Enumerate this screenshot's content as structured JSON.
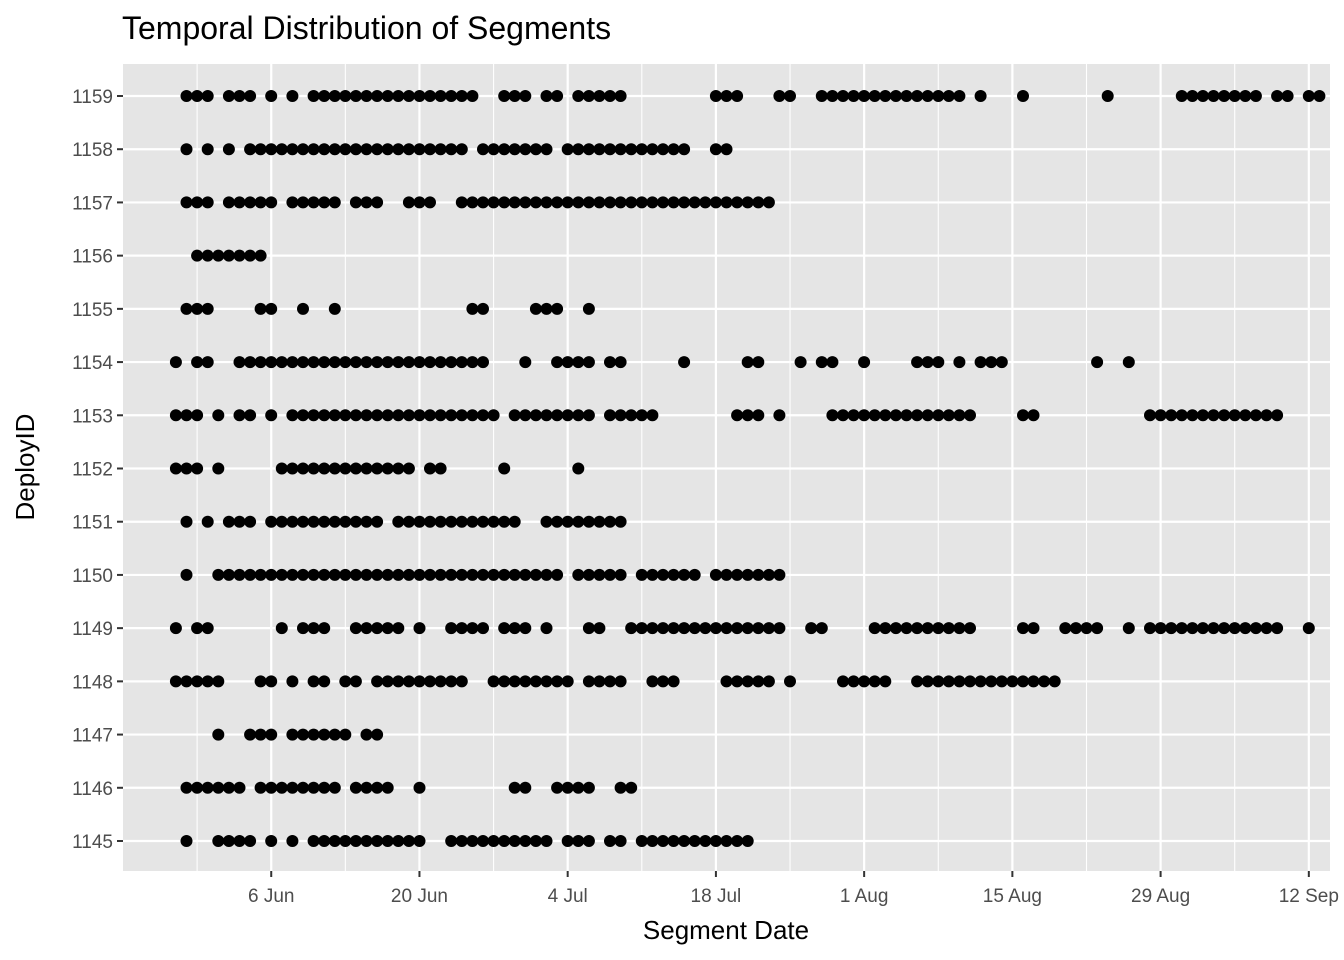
{
  "chart_data": {
    "type": "scatter",
    "title": "Temporal Distribution of Segments",
    "xlabel": "Segment Date",
    "ylabel": "DeployID",
    "x_ticks": [
      "6 Jun",
      "20 Jun",
      "4 Jul",
      "18 Jul",
      "1 Aug",
      "15 Aug",
      "29 Aug",
      "12 Sep"
    ],
    "x_tick_dates": [
      "2023-06-06",
      "2023-06-20",
      "2023-07-04",
      "2023-07-18",
      "2023-08-01",
      "2023-08-15",
      "2023-08-29",
      "2023-09-12"
    ],
    "xlim": [
      "2023-05-23",
      "2023-09-14"
    ],
    "y_categories": [
      "1145",
      "1146",
      "1147",
      "1148",
      "1149",
      "1150",
      "1151",
      "1152",
      "1153",
      "1154",
      "1155",
      "1156",
      "1157",
      "1158",
      "1159"
    ],
    "grid": true,
    "background": "#e5e5e5",
    "grid_color": "#ffffff",
    "point_color": "#000000",
    "series": [
      {
        "y": "1159",
        "x": [
          "2023-05-29",
          "2023-05-30",
          "2023-05-31",
          "2023-06-02",
          "2023-06-03",
          "2023-06-04",
          "2023-06-06",
          "2023-06-08",
          "2023-06-10",
          "2023-06-11",
          "2023-06-12",
          "2023-06-13",
          "2023-06-14",
          "2023-06-15",
          "2023-06-16",
          "2023-06-17",
          "2023-06-18",
          "2023-06-19",
          "2023-06-20",
          "2023-06-21",
          "2023-06-22",
          "2023-06-23",
          "2023-06-24",
          "2023-06-25",
          "2023-06-28",
          "2023-06-29",
          "2023-06-30",
          "2023-07-02",
          "2023-07-03",
          "2023-07-05",
          "2023-07-06",
          "2023-07-07",
          "2023-07-08",
          "2023-07-09",
          "2023-07-18",
          "2023-07-19",
          "2023-07-20",
          "2023-07-24",
          "2023-07-25",
          "2023-07-28",
          "2023-07-29",
          "2023-07-30",
          "2023-07-31",
          "2023-08-01",
          "2023-08-02",
          "2023-08-03",
          "2023-08-04",
          "2023-08-05",
          "2023-08-06",
          "2023-08-07",
          "2023-08-08",
          "2023-08-09",
          "2023-08-10",
          "2023-08-12",
          "2023-08-16",
          "2023-08-24",
          "2023-08-31",
          "2023-09-01",
          "2023-09-02",
          "2023-09-03",
          "2023-09-04",
          "2023-09-05",
          "2023-09-06",
          "2023-09-07",
          "2023-09-09",
          "2023-09-10",
          "2023-09-12",
          "2023-09-13"
        ]
      },
      {
        "y": "1158",
        "x": [
          "2023-05-29",
          "2023-05-31",
          "2023-06-02",
          "2023-06-04",
          "2023-06-05",
          "2023-06-06",
          "2023-06-07",
          "2023-06-08",
          "2023-06-09",
          "2023-06-10",
          "2023-06-11",
          "2023-06-12",
          "2023-06-13",
          "2023-06-14",
          "2023-06-15",
          "2023-06-16",
          "2023-06-17",
          "2023-06-18",
          "2023-06-19",
          "2023-06-20",
          "2023-06-21",
          "2023-06-22",
          "2023-06-23",
          "2023-06-24",
          "2023-06-26",
          "2023-06-27",
          "2023-06-28",
          "2023-06-29",
          "2023-06-30",
          "2023-07-01",
          "2023-07-02",
          "2023-07-04",
          "2023-07-05",
          "2023-07-06",
          "2023-07-07",
          "2023-07-08",
          "2023-07-09",
          "2023-07-10",
          "2023-07-11",
          "2023-07-12",
          "2023-07-13",
          "2023-07-14",
          "2023-07-15",
          "2023-07-18",
          "2023-07-19"
        ]
      },
      {
        "y": "1157",
        "x": [
          "2023-05-29",
          "2023-05-30",
          "2023-05-31",
          "2023-06-02",
          "2023-06-03",
          "2023-06-04",
          "2023-06-05",
          "2023-06-06",
          "2023-06-08",
          "2023-06-09",
          "2023-06-10",
          "2023-06-11",
          "2023-06-12",
          "2023-06-14",
          "2023-06-15",
          "2023-06-16",
          "2023-06-19",
          "2023-06-20",
          "2023-06-21",
          "2023-06-24",
          "2023-06-25",
          "2023-06-26",
          "2023-06-27",
          "2023-06-28",
          "2023-06-29",
          "2023-06-30",
          "2023-07-01",
          "2023-07-02",
          "2023-07-03",
          "2023-07-04",
          "2023-07-05",
          "2023-07-06",
          "2023-07-07",
          "2023-07-08",
          "2023-07-09",
          "2023-07-10",
          "2023-07-11",
          "2023-07-12",
          "2023-07-13",
          "2023-07-14",
          "2023-07-15",
          "2023-07-16",
          "2023-07-17",
          "2023-07-18",
          "2023-07-19",
          "2023-07-20",
          "2023-07-21",
          "2023-07-22",
          "2023-07-23"
        ]
      },
      {
        "y": "1156",
        "x": [
          "2023-05-30",
          "2023-05-31",
          "2023-06-01",
          "2023-06-02",
          "2023-06-03",
          "2023-06-04",
          "2023-06-05"
        ]
      },
      {
        "y": "1155",
        "x": [
          "2023-05-29",
          "2023-05-30",
          "2023-05-31",
          "2023-06-05",
          "2023-06-06",
          "2023-06-09",
          "2023-06-12",
          "2023-06-25",
          "2023-06-26",
          "2023-07-01",
          "2023-07-02",
          "2023-07-03",
          "2023-07-06"
        ]
      },
      {
        "y": "1154",
        "x": [
          "2023-05-28",
          "2023-05-30",
          "2023-05-31",
          "2023-06-03",
          "2023-06-04",
          "2023-06-05",
          "2023-06-06",
          "2023-06-07",
          "2023-06-08",
          "2023-06-09",
          "2023-06-10",
          "2023-06-11",
          "2023-06-12",
          "2023-06-13",
          "2023-06-14",
          "2023-06-15",
          "2023-06-16",
          "2023-06-17",
          "2023-06-18",
          "2023-06-19",
          "2023-06-20",
          "2023-06-21",
          "2023-06-22",
          "2023-06-23",
          "2023-06-24",
          "2023-06-25",
          "2023-06-26",
          "2023-06-30",
          "2023-07-03",
          "2023-07-04",
          "2023-07-05",
          "2023-07-06",
          "2023-07-08",
          "2023-07-09",
          "2023-07-15",
          "2023-07-21",
          "2023-07-22",
          "2023-07-26",
          "2023-07-28",
          "2023-07-29",
          "2023-08-01",
          "2023-08-06",
          "2023-08-07",
          "2023-08-08",
          "2023-08-10",
          "2023-08-12",
          "2023-08-13",
          "2023-08-14",
          "2023-08-23",
          "2023-08-26"
        ]
      },
      {
        "y": "1153",
        "x": [
          "2023-05-28",
          "2023-05-29",
          "2023-05-30",
          "2023-06-01",
          "2023-06-03",
          "2023-06-04",
          "2023-06-06",
          "2023-06-08",
          "2023-06-09",
          "2023-06-10",
          "2023-06-11",
          "2023-06-12",
          "2023-06-13",
          "2023-06-14",
          "2023-06-15",
          "2023-06-16",
          "2023-06-17",
          "2023-06-18",
          "2023-06-19",
          "2023-06-20",
          "2023-06-21",
          "2023-06-22",
          "2023-06-23",
          "2023-06-24",
          "2023-06-25",
          "2023-06-26",
          "2023-06-27",
          "2023-06-29",
          "2023-06-30",
          "2023-07-01",
          "2023-07-02",
          "2023-07-03",
          "2023-07-04",
          "2023-07-05",
          "2023-07-06",
          "2023-07-08",
          "2023-07-09",
          "2023-07-10",
          "2023-07-11",
          "2023-07-12",
          "2023-07-20",
          "2023-07-21",
          "2023-07-22",
          "2023-07-24",
          "2023-07-29",
          "2023-07-30",
          "2023-07-31",
          "2023-08-01",
          "2023-08-02",
          "2023-08-03",
          "2023-08-04",
          "2023-08-05",
          "2023-08-06",
          "2023-08-07",
          "2023-08-08",
          "2023-08-09",
          "2023-08-10",
          "2023-08-11",
          "2023-08-16",
          "2023-08-17",
          "2023-08-28",
          "2023-08-29",
          "2023-08-30",
          "2023-08-31",
          "2023-09-01",
          "2023-09-02",
          "2023-09-03",
          "2023-09-04",
          "2023-09-05",
          "2023-09-06",
          "2023-09-07",
          "2023-09-08",
          "2023-09-09"
        ]
      },
      {
        "y": "1152",
        "x": [
          "2023-05-28",
          "2023-05-29",
          "2023-05-30",
          "2023-06-01",
          "2023-06-07",
          "2023-06-08",
          "2023-06-09",
          "2023-06-10",
          "2023-06-11",
          "2023-06-12",
          "2023-06-13",
          "2023-06-14",
          "2023-06-15",
          "2023-06-16",
          "2023-06-17",
          "2023-06-18",
          "2023-06-19",
          "2023-06-21",
          "2023-06-22",
          "2023-06-28",
          "2023-07-05"
        ]
      },
      {
        "y": "1151",
        "x": [
          "2023-05-29",
          "2023-05-31",
          "2023-06-02",
          "2023-06-03",
          "2023-06-04",
          "2023-06-06",
          "2023-06-07",
          "2023-06-08",
          "2023-06-09",
          "2023-06-10",
          "2023-06-11",
          "2023-06-12",
          "2023-06-13",
          "2023-06-14",
          "2023-06-15",
          "2023-06-16",
          "2023-06-18",
          "2023-06-19",
          "2023-06-20",
          "2023-06-21",
          "2023-06-22",
          "2023-06-23",
          "2023-06-24",
          "2023-06-25",
          "2023-06-26",
          "2023-06-27",
          "2023-06-28",
          "2023-06-29",
          "2023-07-02",
          "2023-07-03",
          "2023-07-04",
          "2023-07-05",
          "2023-07-06",
          "2023-07-07",
          "2023-07-08",
          "2023-07-09"
        ]
      },
      {
        "y": "1150",
        "x": [
          "2023-05-29",
          "2023-06-01",
          "2023-06-02",
          "2023-06-03",
          "2023-06-04",
          "2023-06-05",
          "2023-06-06",
          "2023-06-07",
          "2023-06-08",
          "2023-06-09",
          "2023-06-10",
          "2023-06-11",
          "2023-06-12",
          "2023-06-13",
          "2023-06-14",
          "2023-06-15",
          "2023-06-16",
          "2023-06-17",
          "2023-06-18",
          "2023-06-19",
          "2023-06-20",
          "2023-06-21",
          "2023-06-22",
          "2023-06-23",
          "2023-06-24",
          "2023-06-25",
          "2023-06-26",
          "2023-06-27",
          "2023-06-28",
          "2023-06-29",
          "2023-06-30",
          "2023-07-01",
          "2023-07-02",
          "2023-07-03",
          "2023-07-05",
          "2023-07-06",
          "2023-07-07",
          "2023-07-08",
          "2023-07-09",
          "2023-07-11",
          "2023-07-12",
          "2023-07-13",
          "2023-07-14",
          "2023-07-15",
          "2023-07-16",
          "2023-07-18",
          "2023-07-19",
          "2023-07-20",
          "2023-07-21",
          "2023-07-22",
          "2023-07-23",
          "2023-07-24"
        ]
      },
      {
        "y": "1149",
        "x": [
          "2023-05-28",
          "2023-05-30",
          "2023-05-31",
          "2023-06-07",
          "2023-06-09",
          "2023-06-10",
          "2023-06-11",
          "2023-06-14",
          "2023-06-15",
          "2023-06-16",
          "2023-06-17",
          "2023-06-18",
          "2023-06-20",
          "2023-06-23",
          "2023-06-24",
          "2023-06-25",
          "2023-06-26",
          "2023-06-28",
          "2023-06-29",
          "2023-06-30",
          "2023-07-02",
          "2023-07-06",
          "2023-07-07",
          "2023-07-10",
          "2023-07-11",
          "2023-07-12",
          "2023-07-13",
          "2023-07-14",
          "2023-07-15",
          "2023-07-16",
          "2023-07-17",
          "2023-07-18",
          "2023-07-19",
          "2023-07-20",
          "2023-07-21",
          "2023-07-22",
          "2023-07-23",
          "2023-07-24",
          "2023-07-27",
          "2023-07-28",
          "2023-08-02",
          "2023-08-03",
          "2023-08-04",
          "2023-08-05",
          "2023-08-06",
          "2023-08-07",
          "2023-08-08",
          "2023-08-09",
          "2023-08-10",
          "2023-08-11",
          "2023-08-16",
          "2023-08-17",
          "2023-08-20",
          "2023-08-21",
          "2023-08-22",
          "2023-08-23",
          "2023-08-26",
          "2023-08-28",
          "2023-08-29",
          "2023-08-30",
          "2023-08-31",
          "2023-09-01",
          "2023-09-02",
          "2023-09-03",
          "2023-09-04",
          "2023-09-05",
          "2023-09-06",
          "2023-09-07",
          "2023-09-08",
          "2023-09-09",
          "2023-09-12"
        ]
      },
      {
        "y": "1148",
        "x": [
          "2023-05-28",
          "2023-05-29",
          "2023-05-30",
          "2023-05-31",
          "2023-06-01",
          "2023-06-05",
          "2023-06-06",
          "2023-06-08",
          "2023-06-10",
          "2023-06-11",
          "2023-06-13",
          "2023-06-14",
          "2023-06-16",
          "2023-06-17",
          "2023-06-18",
          "2023-06-19",
          "2023-06-20",
          "2023-06-21",
          "2023-06-22",
          "2023-06-23",
          "2023-06-24",
          "2023-06-27",
          "2023-06-28",
          "2023-06-29",
          "2023-06-30",
          "2023-07-01",
          "2023-07-02",
          "2023-07-03",
          "2023-07-04",
          "2023-07-06",
          "2023-07-07",
          "2023-07-08",
          "2023-07-09",
          "2023-07-12",
          "2023-07-13",
          "2023-07-14",
          "2023-07-19",
          "2023-07-20",
          "2023-07-21",
          "2023-07-22",
          "2023-07-23",
          "2023-07-25",
          "2023-07-30",
          "2023-07-31",
          "2023-08-01",
          "2023-08-02",
          "2023-08-03",
          "2023-08-06",
          "2023-08-07",
          "2023-08-08",
          "2023-08-09",
          "2023-08-10",
          "2023-08-11",
          "2023-08-12",
          "2023-08-13",
          "2023-08-14",
          "2023-08-15",
          "2023-08-16",
          "2023-08-17",
          "2023-08-18",
          "2023-08-19"
        ]
      },
      {
        "y": "1147",
        "x": [
          "2023-06-01",
          "2023-06-04",
          "2023-06-05",
          "2023-06-06",
          "2023-06-08",
          "2023-06-09",
          "2023-06-10",
          "2023-06-11",
          "2023-06-12",
          "2023-06-13",
          "2023-06-15",
          "2023-06-16"
        ]
      },
      {
        "y": "1146",
        "x": [
          "2023-05-29",
          "2023-05-30",
          "2023-05-31",
          "2023-06-01",
          "2023-06-02",
          "2023-06-03",
          "2023-06-05",
          "2023-06-06",
          "2023-06-07",
          "2023-06-08",
          "2023-06-09",
          "2023-06-10",
          "2023-06-11",
          "2023-06-12",
          "2023-06-14",
          "2023-06-15",
          "2023-06-16",
          "2023-06-17",
          "2023-06-20",
          "2023-06-29",
          "2023-06-30",
          "2023-07-03",
          "2023-07-04",
          "2023-07-05",
          "2023-07-06",
          "2023-07-09",
          "2023-07-10"
        ]
      },
      {
        "y": "1145",
        "x": [
          "2023-05-29",
          "2023-06-01",
          "2023-06-02",
          "2023-06-03",
          "2023-06-04",
          "2023-06-06",
          "2023-06-08",
          "2023-06-10",
          "2023-06-11",
          "2023-06-12",
          "2023-06-13",
          "2023-06-14",
          "2023-06-15",
          "2023-06-16",
          "2023-06-17",
          "2023-06-18",
          "2023-06-19",
          "2023-06-20",
          "2023-06-23",
          "2023-06-24",
          "2023-06-25",
          "2023-06-26",
          "2023-06-27",
          "2023-06-28",
          "2023-06-29",
          "2023-06-30",
          "2023-07-01",
          "2023-07-02",
          "2023-07-04",
          "2023-07-05",
          "2023-07-06",
          "2023-07-08",
          "2023-07-09",
          "2023-07-11",
          "2023-07-12",
          "2023-07-13",
          "2023-07-14",
          "2023-07-15",
          "2023-07-16",
          "2023-07-17",
          "2023-07-18",
          "2023-07-19",
          "2023-07-20",
          "2023-07-21"
        ]
      }
    ]
  }
}
